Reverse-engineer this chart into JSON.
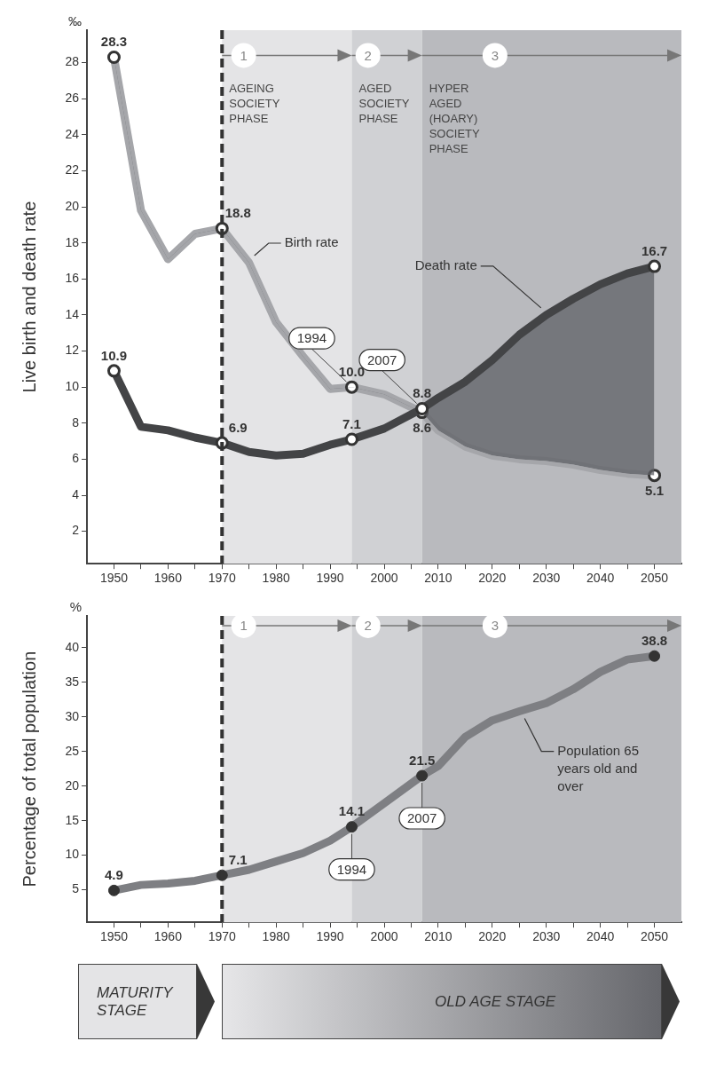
{
  "chart_data": [
    {
      "type": "line",
      "ylabel": "Live birth and death rate",
      "xlim": [
        1945,
        2055
      ],
      "ylim": [
        0.2,
        29.8
      ],
      "xticks": [
        1950,
        {
          "value": 1955,
          "label": null
        },
        1960,
        {
          "value": 1965,
          "label": null
        },
        1970,
        {
          "value": 1975,
          "label": null
        },
        1980,
        {
          "value": 1985,
          "label": null
        },
        1990,
        {
          "value": 1995,
          "label": null
        },
        2000,
        {
          "value": 2005,
          "label": null
        },
        2010,
        {
          "value": 2015,
          "label": null
        },
        2020,
        {
          "value": 2025,
          "label": null
        },
        2030,
        {
          "value": 2035,
          "label": null
        },
        2040,
        {
          "value": 2045,
          "label": null
        },
        2050
      ],
      "yticks": [
        2,
        4,
        6,
        8,
        10,
        12,
        14,
        16,
        18,
        20,
        22,
        24,
        26,
        28
      ],
      "grid": false,
      "line_style": "solid",
      "series": [
        {
          "name": "Birth rate",
          "color": "#a5a6aa",
          "x": [
            1950,
            1955,
            1960,
            1965,
            1970,
            1975,
            1980,
            1985,
            1990,
            1994,
            2000,
            2007,
            2010,
            2015,
            2020,
            2025,
            2030,
            2035,
            2040,
            2045,
            2050
          ],
          "values": [
            28.3,
            19.8,
            17.1,
            18.5,
            18.8,
            16.9,
            13.6,
            11.7,
            9.9,
            10.0,
            9.6,
            8.6,
            7.6,
            6.7,
            6.2,
            6.0,
            5.9,
            5.7,
            5.4,
            5.2,
            5.1
          ],
          "value_labels": [
            "28.3",
            null,
            null,
            null,
            "18.8",
            null,
            null,
            null,
            null,
            "10.0",
            null,
            "8.6",
            null,
            null,
            null,
            null,
            null,
            null,
            null,
            null,
            "5.1"
          ]
        },
        {
          "name": "Death rate",
          "color": "#434446",
          "x": [
            1950,
            1955,
            1960,
            1965,
            1970,
            1975,
            1980,
            1985,
            1990,
            1994,
            2000,
            2007,
            2010,
            2015,
            2020,
            2025,
            2030,
            2035,
            2040,
            2045,
            2050
          ],
          "values": [
            10.9,
            7.8,
            7.6,
            7.2,
            6.9,
            6.4,
            6.2,
            6.3,
            6.8,
            7.1,
            7.7,
            8.8,
            9.4,
            10.3,
            11.5,
            12.9,
            14.0,
            14.9,
            15.7,
            16.3,
            16.7
          ],
          "value_labels": [
            "10.9",
            null,
            null,
            null,
            "6.9",
            null,
            null,
            null,
            null,
            "7.1",
            null,
            "8.8",
            null,
            null,
            null,
            null,
            null,
            null,
            null,
            null,
            "16.7"
          ]
        }
      ],
      "bands": [
        {
          "axis": "x",
          "from": 1970,
          "to": 1994,
          "label": "AGEING SOCIETY PHASE",
          "color": "#e4e4e6"
        },
        {
          "axis": "x",
          "from": 1994,
          "to": 2007,
          "label": "AGED SOCIETY PHASE",
          "color": "#d0d1d4"
        },
        {
          "axis": "x",
          "from": 2007,
          "to": 2055,
          "label": "HYPER AGED (HOARY) SOCIETY PHASE",
          "color": "#b9babe"
        }
      ],
      "ref_lines": [
        {
          "axis": "x",
          "value": 1970,
          "color": "#333333",
          "line_style": "dashed"
        }
      ],
      "annotations": [
        "‰",
        {
          "text": "1",
          "x": 1974,
          "y": 28.4
        },
        {
          "text": "2",
          "x": 1997,
          "y": 28.4
        },
        {
          "text": "3",
          "x": 2020.5,
          "y": 28.4
        },
        {
          "text": "1994",
          "x": 1994,
          "y": 10.0
        },
        {
          "text": "2007",
          "x": 2007,
          "y": 8.8
        }
      ]
    },
    {
      "type": "line",
      "ylabel": "Percentage of total population",
      "xlim": [
        1945,
        2055
      ],
      "ylim": [
        0.3,
        44.6
      ],
      "xticks": [
        1950,
        {
          "value": 1955,
          "label": null
        },
        1960,
        {
          "value": 1965,
          "label": null
        },
        1970,
        {
          "value": 1975,
          "label": null
        },
        1980,
        {
          "value": 1985,
          "label": null
        },
        1990,
        {
          "value": 1995,
          "label": null
        },
        2000,
        {
          "value": 2005,
          "label": null
        },
        2010,
        {
          "value": 2015,
          "label": null
        },
        2020,
        {
          "value": 2025,
          "label": null
        },
        2030,
        {
          "value": 2035,
          "label": null
        },
        2040,
        {
          "value": 2045,
          "label": null
        },
        2050
      ],
      "yticks": [
        5,
        10,
        15,
        20,
        25,
        30,
        35,
        40
      ],
      "grid": false,
      "line_style": "solid",
      "series": [
        {
          "name": "Population 65 years old and over",
          "color": "#7e7f83",
          "x": [
            1950,
            1955,
            1960,
            1965,
            1970,
            1975,
            1980,
            1985,
            1990,
            1994,
            2000,
            2007,
            2010,
            2015,
            2020,
            2025,
            2030,
            2035,
            2040,
            2045,
            2050
          ],
          "values": [
            4.9,
            5.7,
            5.9,
            6.3,
            7.1,
            7.9,
            9.1,
            10.3,
            12.1,
            14.1,
            17.5,
            21.5,
            22.9,
            27.1,
            29.5,
            30.8,
            32.0,
            34.0,
            36.5,
            38.3,
            38.8
          ],
          "value_labels": [
            "4.9",
            null,
            null,
            null,
            "7.1",
            null,
            null,
            null,
            null,
            "14.1",
            null,
            "21.5",
            null,
            null,
            null,
            null,
            null,
            null,
            null,
            null,
            "38.8"
          ]
        }
      ],
      "bands": [
        {
          "axis": "x",
          "from": 1970,
          "to": 1994,
          "color": "#e4e4e6"
        },
        {
          "axis": "x",
          "from": 1994,
          "to": 2007,
          "color": "#d0d1d4"
        },
        {
          "axis": "x",
          "from": 2007,
          "to": 2055,
          "color": "#b9babe"
        }
      ],
      "ref_lines": [
        {
          "axis": "x",
          "value": 1970,
          "color": "#333333",
          "line_style": "dashed"
        }
      ],
      "annotations": [
        "%",
        "MATURITY STAGE",
        "OLD AGE STAGE",
        {
          "text": "1",
          "x": 1974,
          "y": 43.2
        },
        {
          "text": "2",
          "x": 1997,
          "y": 43.2
        },
        {
          "text": "3",
          "x": 2020.5,
          "y": 43.2
        },
        {
          "text": "1994",
          "x": 1994,
          "y": 14.1
        },
        {
          "text": "2007",
          "x": 2007,
          "y": 21.5
        }
      ]
    }
  ]
}
